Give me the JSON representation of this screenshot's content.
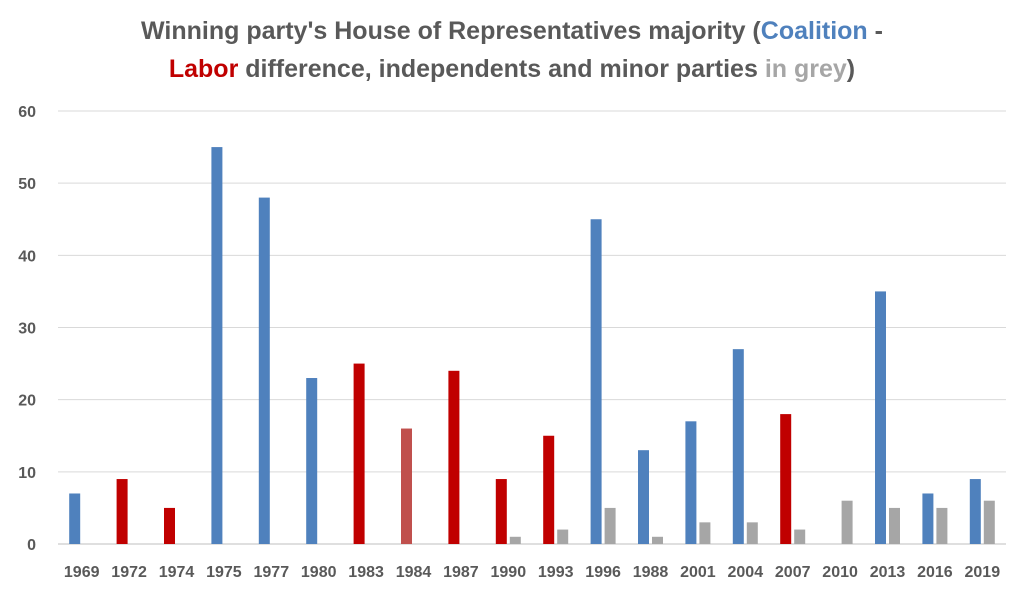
{
  "chart_data": {
    "type": "bar",
    "title": {
      "line1_prefix": "Winning party's House of Representatives majority  (",
      "coalition_word": "Coalition",
      "line1_suffix": " -",
      "labor_word": "Labor",
      "line2_mid": " difference, independents and minor parties ",
      "grey_words": "in grey",
      "line2_end": ")"
    },
    "xlabel": "",
    "ylabel": "",
    "ylim": [
      0,
      60
    ],
    "yticks": [
      0,
      10,
      20,
      30,
      40,
      50,
      60
    ],
    "grid": true,
    "categories": [
      "1969",
      "1972",
      "1974",
      "1975",
      "1977",
      "1980",
      "1983",
      "1984",
      "1987",
      "1990",
      "1993",
      "1996",
      "1988",
      "2001",
      "2004",
      "2007",
      "2010",
      "2013",
      "2016",
      "2019"
    ],
    "series": [
      {
        "values": [
          7,
          9,
          5,
          55,
          48,
          23,
          25,
          16,
          24,
          9,
          15,
          45,
          13,
          17,
          27,
          18,
          0,
          35,
          7,
          9
        ],
        "colors": [
          "#4f81bd",
          "#c00000",
          "#c00000",
          "#4f81bd",
          "#4f81bd",
          "#4f81bd",
          "#c00000",
          "#c0504d",
          "#c00000",
          "#c00000",
          "#c00000",
          "#4f81bd",
          "#4f81bd",
          "#4f81bd",
          "#4f81bd",
          "#c00000",
          "#4f81bd",
          "#4f81bd",
          "#4f81bd",
          "#4f81bd"
        ]
      },
      {
        "values": [
          0,
          0,
          0,
          0,
          0,
          0,
          0,
          0,
          0,
          1,
          2,
          5,
          1,
          3,
          3,
          2,
          6,
          5,
          5,
          6
        ],
        "color": "#a6a6a6"
      }
    ],
    "colors": {
      "coalition": "#4f81bd",
      "labor": "#c00000",
      "grey": "#a6a6a6"
    }
  }
}
